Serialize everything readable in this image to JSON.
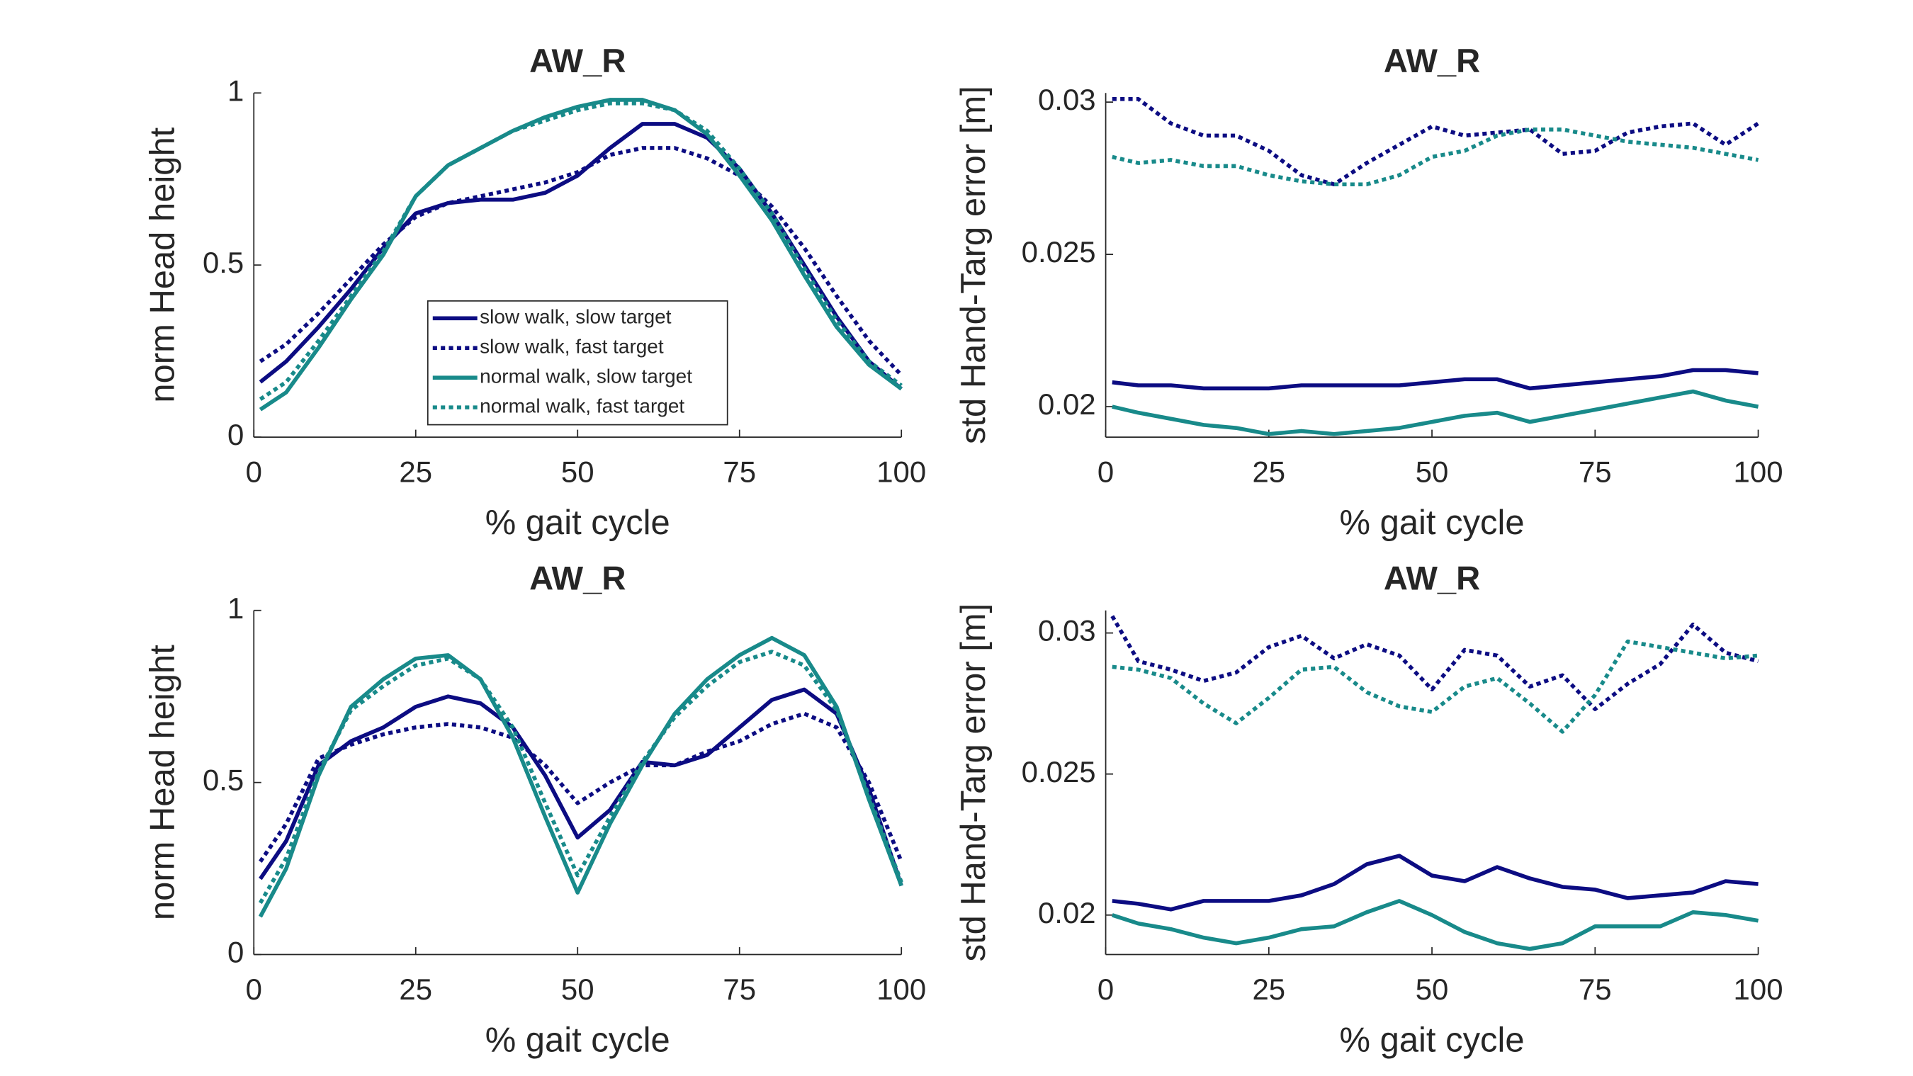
{
  "chart_data": [
    {
      "type": "line",
      "title": "AW_R",
      "xlabel": "% gait cycle",
      "ylabel": "norm Head height",
      "x": [
        1,
        5,
        10,
        15,
        20,
        25,
        30,
        35,
        40,
        45,
        50,
        55,
        60,
        65,
        70,
        75,
        80,
        85,
        90,
        95,
        100
      ],
      "xlim": [
        0,
        100
      ],
      "xticks": [
        0,
        25,
        50,
        75,
        100
      ],
      "ylim": [
        0,
        1
      ],
      "yticks": [
        0,
        0.5,
        1
      ],
      "legend": "south",
      "series": [
        {
          "name": "slow walk, slow target",
          "color": "#0c0c82",
          "line_style": "solid",
          "values": [
            0.16,
            0.22,
            0.32,
            0.43,
            0.55,
            0.65,
            0.68,
            0.69,
            0.69,
            0.71,
            0.76,
            0.84,
            0.91,
            0.91,
            0.87,
            0.78,
            0.65,
            0.5,
            0.35,
            0.22,
            0.14
          ]
        },
        {
          "name": "slow walk, fast target",
          "color": "#0c0c82",
          "line_style": "dotted",
          "values": [
            0.22,
            0.27,
            0.36,
            0.46,
            0.56,
            0.64,
            0.68,
            0.7,
            0.72,
            0.74,
            0.77,
            0.82,
            0.84,
            0.84,
            0.81,
            0.76,
            0.67,
            0.55,
            0.41,
            0.28,
            0.18
          ]
        },
        {
          "name": "normal walk, slow target",
          "color": "#188a8a",
          "line_style": "solid",
          "values": [
            0.08,
            0.13,
            0.26,
            0.4,
            0.53,
            0.7,
            0.79,
            0.84,
            0.89,
            0.93,
            0.96,
            0.98,
            0.98,
            0.95,
            0.88,
            0.76,
            0.63,
            0.47,
            0.32,
            0.21,
            0.14
          ]
        },
        {
          "name": "normal walk, fast target",
          "color": "#188a8a",
          "line_style": "dotted",
          "values": [
            0.11,
            0.16,
            0.28,
            0.41,
            0.54,
            0.7,
            0.79,
            0.84,
            0.89,
            0.92,
            0.95,
            0.97,
            0.97,
            0.95,
            0.89,
            0.78,
            0.65,
            0.49,
            0.34,
            0.22,
            0.15
          ]
        }
      ]
    },
    {
      "type": "line",
      "title": "AW_R",
      "xlabel": "% gait cycle",
      "ylabel": "std Hand-Targ error [m]",
      "x": [
        1,
        5,
        10,
        15,
        20,
        25,
        30,
        35,
        40,
        45,
        50,
        55,
        60,
        65,
        70,
        75,
        80,
        85,
        90,
        95,
        100
      ],
      "xlim": [
        0,
        100
      ],
      "xticks": [
        0,
        25,
        50,
        75,
        100
      ],
      "ylim": [
        0.019,
        0.0303
      ],
      "yticks": [
        0.02,
        0.025,
        0.03
      ],
      "series": [
        {
          "color": "#0c0c82",
          "line_style": "solid",
          "values": [
            0.0208,
            0.0207,
            0.0207,
            0.0206,
            0.0206,
            0.0206,
            0.0207,
            0.0207,
            0.0207,
            0.0207,
            0.0208,
            0.0209,
            0.0209,
            0.0206,
            0.0207,
            0.0208,
            0.0209,
            0.021,
            0.0212,
            0.0212,
            0.0211
          ]
        },
        {
          "color": "#0c0c82",
          "line_style": "dotted",
          "values": [
            0.0301,
            0.0301,
            0.0293,
            0.0289,
            0.0289,
            0.0284,
            0.0276,
            0.0273,
            0.028,
            0.0286,
            0.0292,
            0.0289,
            0.029,
            0.0291,
            0.0283,
            0.0284,
            0.029,
            0.0292,
            0.0293,
            0.0286,
            0.0293
          ]
        },
        {
          "color": "#188a8a",
          "line_style": "solid",
          "values": [
            0.02,
            0.0198,
            0.0196,
            0.0194,
            0.0193,
            0.0191,
            0.0192,
            0.0191,
            0.0192,
            0.0193,
            0.0195,
            0.0197,
            0.0198,
            0.0195,
            0.0197,
            0.0199,
            0.0201,
            0.0203,
            0.0205,
            0.0202,
            0.02
          ]
        },
        {
          "color": "#188a8a",
          "line_style": "dotted",
          "values": [
            0.0282,
            0.028,
            0.0281,
            0.0279,
            0.0279,
            0.0276,
            0.0274,
            0.0273,
            0.0273,
            0.0276,
            0.0282,
            0.0284,
            0.0289,
            0.0291,
            0.0291,
            0.0289,
            0.0287,
            0.0286,
            0.0285,
            0.0283,
            0.0281
          ]
        }
      ]
    },
    {
      "type": "line",
      "title": "AW_R",
      "xlabel": "% gait cycle",
      "ylabel": "norm Head height",
      "x": [
        1,
        5,
        10,
        15,
        20,
        25,
        30,
        35,
        40,
        45,
        50,
        55,
        60,
        65,
        70,
        75,
        80,
        85,
        90,
        95,
        100
      ],
      "xlim": [
        0,
        100
      ],
      "xticks": [
        0,
        25,
        50,
        75,
        100
      ],
      "ylim": [
        0,
        1
      ],
      "yticks": [
        0,
        0.5,
        1
      ],
      "series": [
        {
          "color": "#0c0c82",
          "line_style": "solid",
          "values": [
            0.22,
            0.33,
            0.55,
            0.62,
            0.66,
            0.72,
            0.75,
            0.73,
            0.66,
            0.52,
            0.34,
            0.42,
            0.56,
            0.55,
            0.58,
            0.66,
            0.74,
            0.77,
            0.7,
            0.48,
            0.2
          ]
        },
        {
          "color": "#0c0c82",
          "line_style": "dotted",
          "values": [
            0.27,
            0.38,
            0.57,
            0.61,
            0.64,
            0.66,
            0.67,
            0.66,
            0.63,
            0.55,
            0.44,
            0.5,
            0.55,
            0.55,
            0.59,
            0.62,
            0.67,
            0.7,
            0.66,
            0.5,
            0.27
          ]
        },
        {
          "color": "#188a8a",
          "line_style": "solid",
          "values": [
            0.11,
            0.25,
            0.52,
            0.72,
            0.8,
            0.86,
            0.87,
            0.8,
            0.63,
            0.4,
            0.18,
            0.38,
            0.55,
            0.7,
            0.8,
            0.87,
            0.92,
            0.87,
            0.72,
            0.45,
            0.2
          ]
        },
        {
          "color": "#188a8a",
          "line_style": "dotted",
          "values": [
            0.15,
            0.28,
            0.53,
            0.71,
            0.78,
            0.84,
            0.86,
            0.8,
            0.66,
            0.44,
            0.23,
            0.4,
            0.56,
            0.69,
            0.78,
            0.85,
            0.88,
            0.84,
            0.71,
            0.46,
            0.21
          ]
        }
      ]
    },
    {
      "type": "line",
      "title": "AW_R",
      "xlabel": "% gait cycle",
      "ylabel": "std Hand-Targ error [m]",
      "x": [
        1,
        5,
        10,
        15,
        20,
        25,
        30,
        35,
        40,
        45,
        50,
        55,
        60,
        65,
        70,
        75,
        80,
        85,
        90,
        95,
        100
      ],
      "xlim": [
        0,
        100
      ],
      "xticks": [
        0,
        25,
        50,
        75,
        100
      ],
      "ylim": [
        0.0186,
        0.0308
      ],
      "yticks": [
        0.02,
        0.025,
        0.03
      ],
      "series": [
        {
          "color": "#0c0c82",
          "line_style": "solid",
          "values": [
            0.0205,
            0.0204,
            0.0202,
            0.0205,
            0.0205,
            0.0205,
            0.0207,
            0.0211,
            0.0218,
            0.0221,
            0.0214,
            0.0212,
            0.0217,
            0.0213,
            0.021,
            0.0209,
            0.0206,
            0.0207,
            0.0208,
            0.0212,
            0.0211
          ]
        },
        {
          "color": "#0c0c82",
          "line_style": "dotted",
          "values": [
            0.0306,
            0.029,
            0.0287,
            0.0283,
            0.0286,
            0.0295,
            0.0299,
            0.0291,
            0.0296,
            0.0292,
            0.028,
            0.0294,
            0.0292,
            0.0281,
            0.0285,
            0.0273,
            0.0282,
            0.0289,
            0.0303,
            0.0293,
            0.029
          ]
        },
        {
          "color": "#188a8a",
          "line_style": "solid",
          "values": [
            0.02,
            0.0197,
            0.0195,
            0.0192,
            0.019,
            0.0192,
            0.0195,
            0.0196,
            0.0201,
            0.0205,
            0.02,
            0.0194,
            0.019,
            0.0188,
            0.019,
            0.0196,
            0.0196,
            0.0196,
            0.0201,
            0.02,
            0.0198
          ]
        },
        {
          "color": "#188a8a",
          "line_style": "dotted",
          "values": [
            0.0288,
            0.0287,
            0.0284,
            0.0275,
            0.0268,
            0.0277,
            0.0287,
            0.0288,
            0.0279,
            0.0274,
            0.0272,
            0.0281,
            0.0284,
            0.0275,
            0.0265,
            0.0278,
            0.0297,
            0.0295,
            0.0293,
            0.0291,
            0.0292
          ]
        }
      ]
    }
  ]
}
